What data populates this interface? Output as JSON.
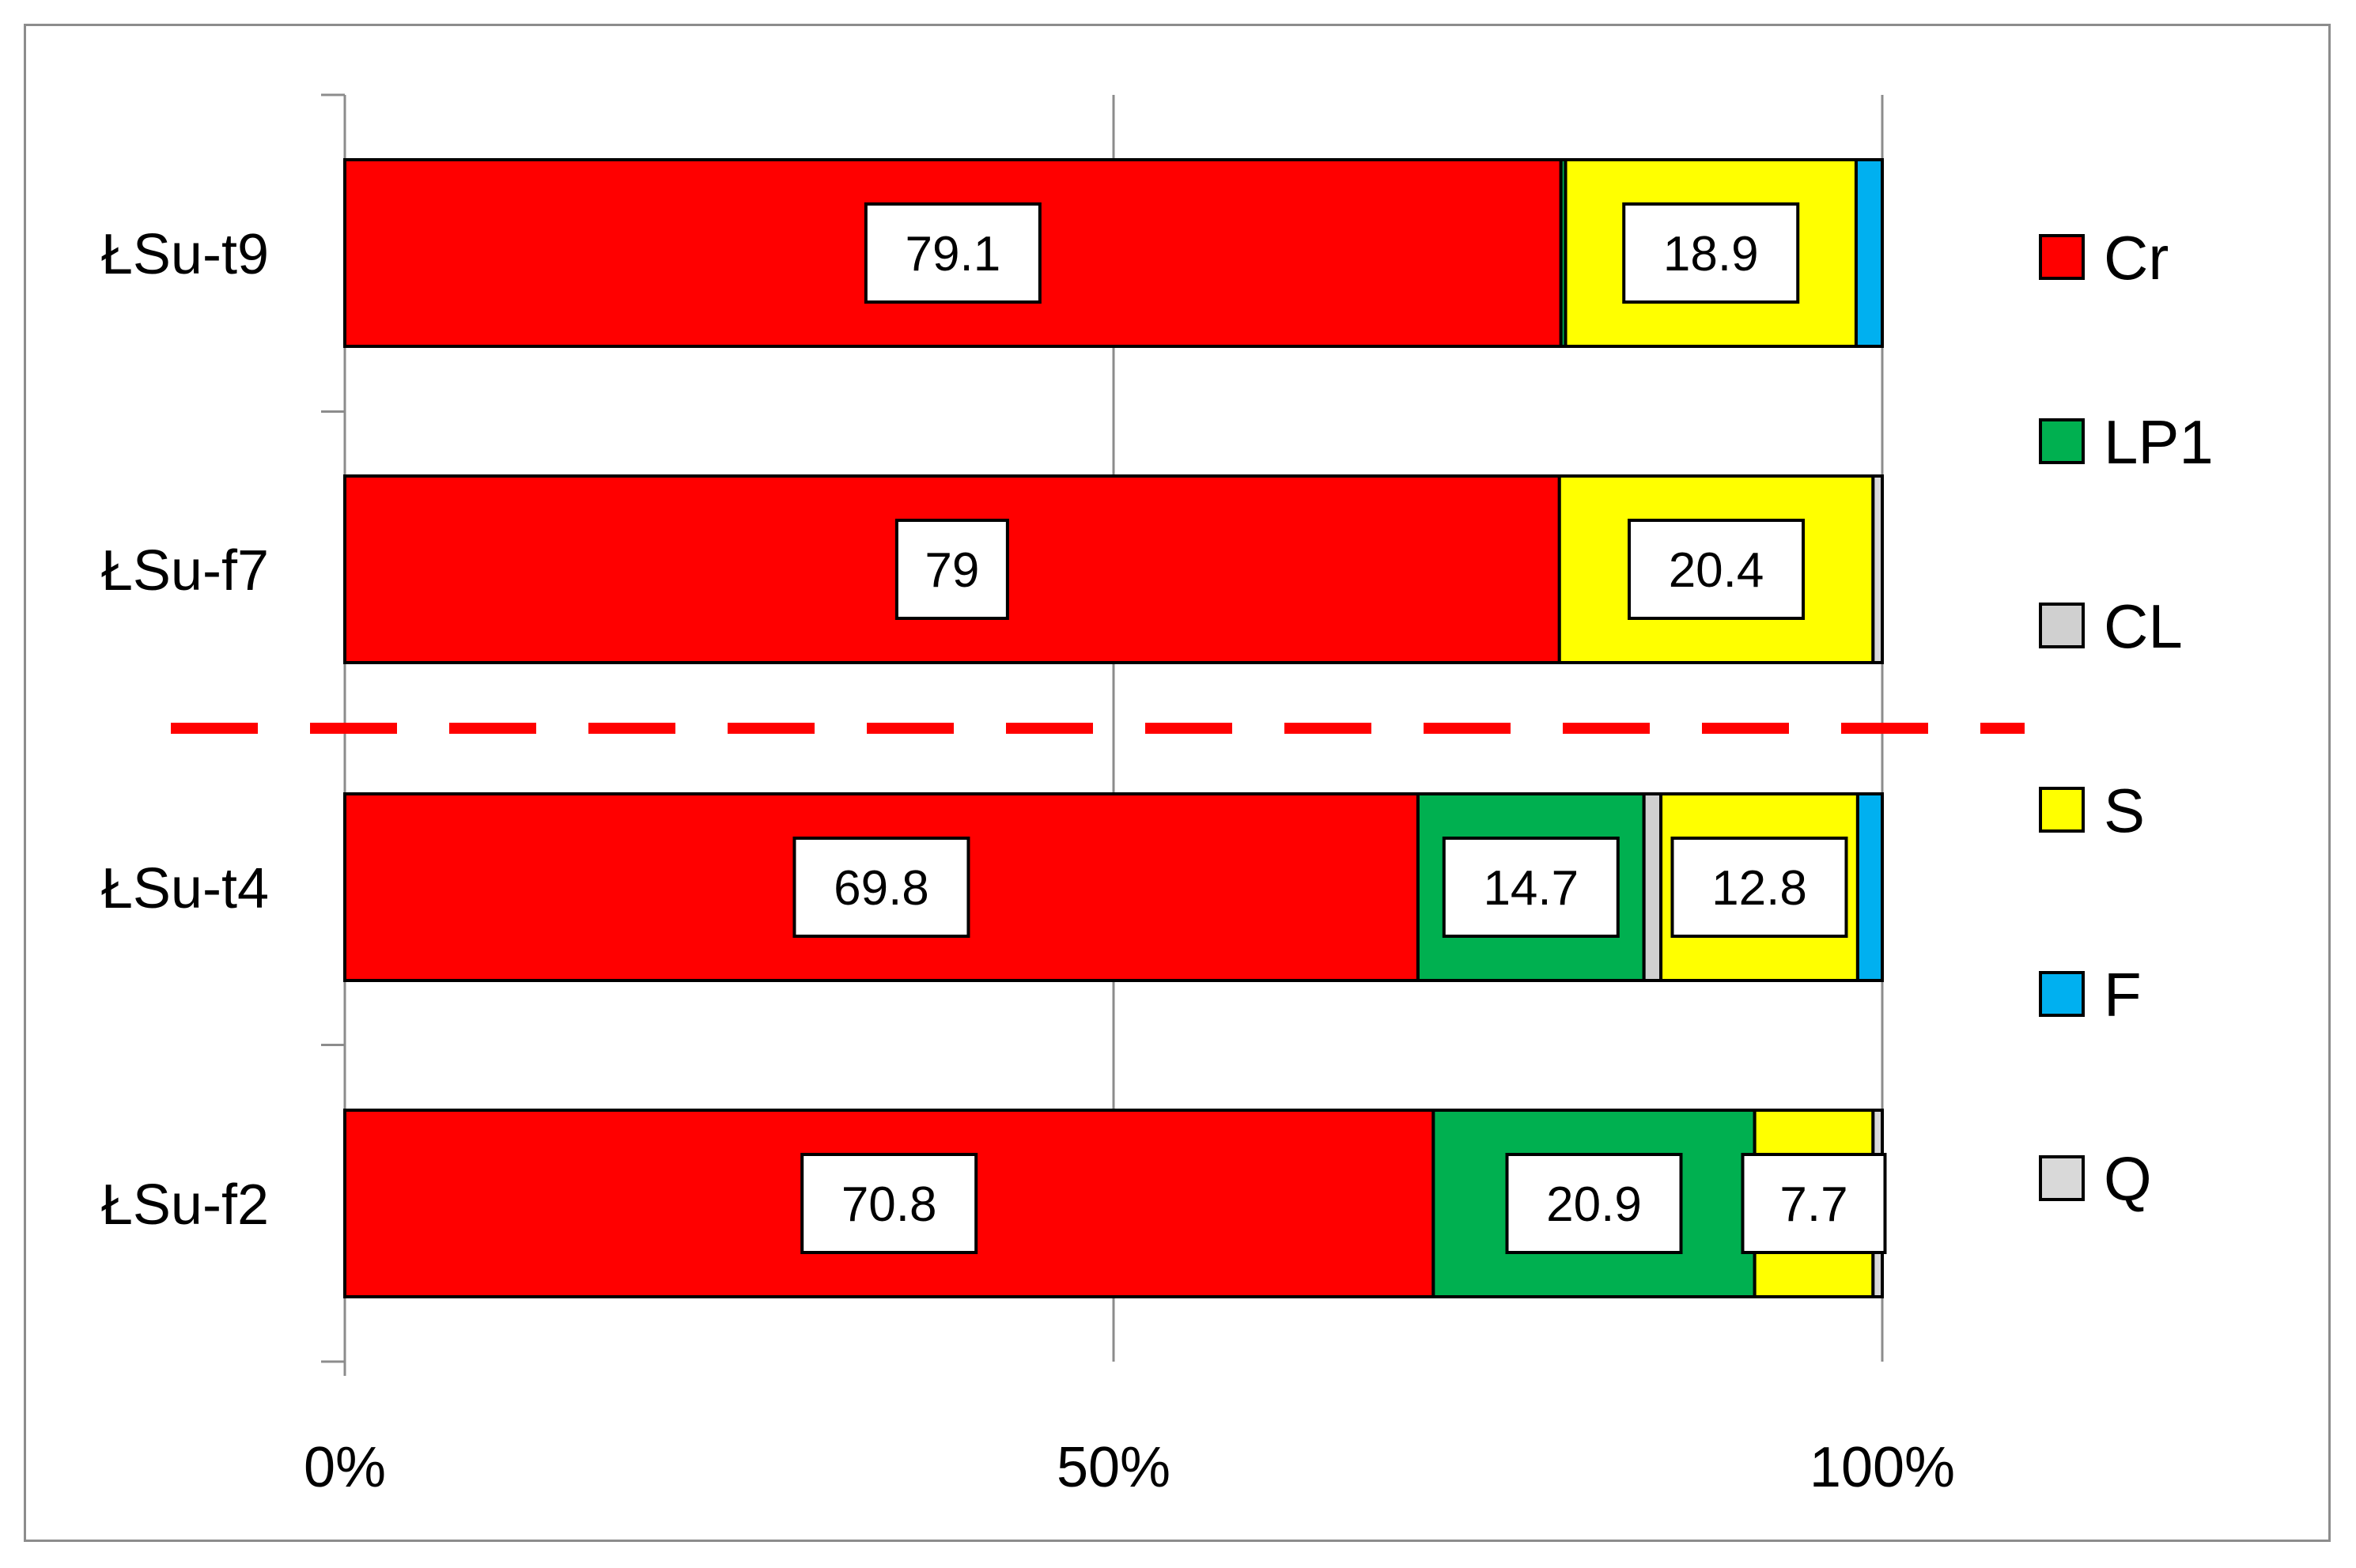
{
  "chart_data": {
    "type": "bar",
    "orientation": "horizontal",
    "stacked": "percent",
    "categories": [
      "ŁSu-t9",
      "ŁSu-f7",
      "ŁSu-t4",
      "ŁSu-f2"
    ],
    "series": [
      {
        "name": "Cr",
        "color": "#ff0000",
        "values": [
          79.1,
          79.0,
          69.8,
          70.8
        ]
      },
      {
        "name": "LP1",
        "color": "#00b050",
        "values": [
          0.3,
          0.0,
          14.7,
          20.9
        ]
      },
      {
        "name": "CL",
        "color": "#d0d0d0",
        "values": [
          0.0,
          0.0,
          1.1,
          0.0
        ]
      },
      {
        "name": "S",
        "color": "#ffff00",
        "values": [
          18.9,
          20.4,
          12.8,
          7.7
        ]
      },
      {
        "name": "F",
        "color": "#00b0f0",
        "values": [
          1.7,
          0.0,
          1.6,
          0.0
        ]
      },
      {
        "name": "Q",
        "color": "#d9d9d9",
        "values": [
          0.0,
          0.6,
          0.0,
          0.6
        ]
      }
    ],
    "data_labels": [
      {
        "category": "ŁSu-t9",
        "series": "Cr",
        "text": "79.1"
      },
      {
        "category": "ŁSu-t9",
        "series": "S",
        "text": "18.9"
      },
      {
        "category": "ŁSu-f7",
        "series": "Cr",
        "text": "79"
      },
      {
        "category": "ŁSu-f7",
        "series": "S",
        "text": "20.4"
      },
      {
        "category": "ŁSu-t4",
        "series": "Cr",
        "text": "69.8"
      },
      {
        "category": "ŁSu-t4",
        "series": "LP1",
        "text": "14.7"
      },
      {
        "category": "ŁSu-t4",
        "series": "S",
        "text": "12.8"
      },
      {
        "category": "ŁSu-f2",
        "series": "Cr",
        "text": "70.8"
      },
      {
        "category": "ŁSu-f2",
        "series": "LP1",
        "text": "20.9"
      },
      {
        "category": "ŁSu-f2",
        "series": "S",
        "text": "7.7"
      }
    ],
    "xaxis": {
      "ticks": [
        "0%",
        "50%",
        "100%"
      ],
      "range": [
        0,
        100
      ]
    },
    "grid": true,
    "legend": "right",
    "separator": {
      "after_category": "ŁSu-f7",
      "style": "dashed",
      "color": "#ff0000"
    },
    "title": "",
    "xlabel": "",
    "ylabel": ""
  }
}
